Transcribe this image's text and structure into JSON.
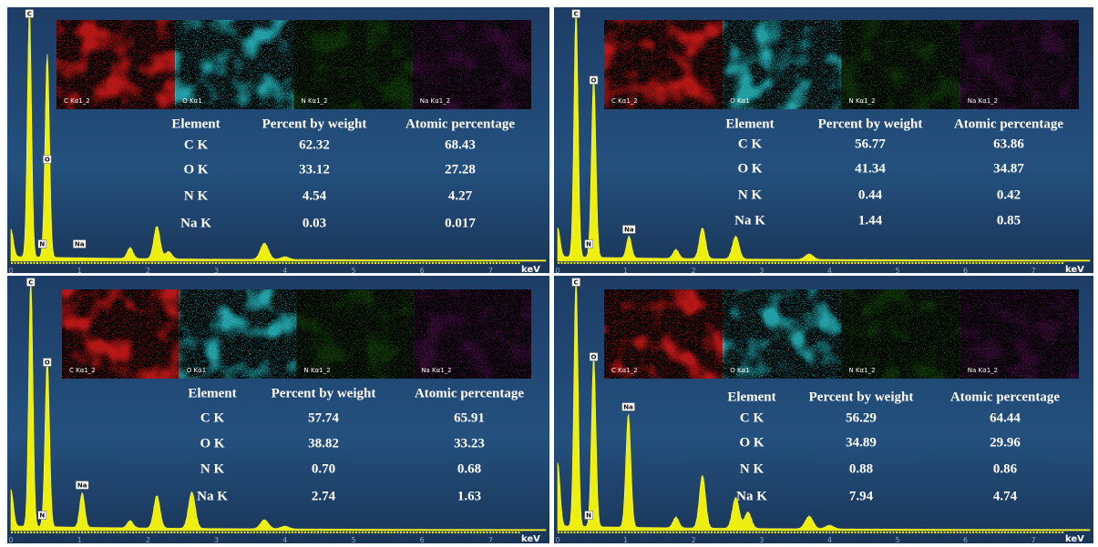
{
  "panels": [
    {
      "peaks": [
        "C",
        "O",
        "N",
        "Na"
      ],
      "maps": [
        "C Kα1_2",
        "O Kα1",
        "N Kα1_2",
        "Na Kα1_2"
      ],
      "table": {
        "header": [
          "Element",
          "Percent by weight",
          "Atomic percentage"
        ],
        "rows": [
          [
            "C K",
            "62.32",
            "68.43"
          ],
          [
            "O K",
            "33.12",
            "27.28"
          ],
          [
            "N K",
            "4.54",
            "4.27"
          ],
          [
            "Na K",
            "0.03",
            "0.017"
          ]
        ]
      },
      "axis": {
        "ticks": [
          "0",
          "1",
          "2",
          "3",
          "4",
          "5",
          "6",
          "7"
        ],
        "unit": "keV"
      }
    },
    {
      "peaks": [
        "C",
        "O",
        "N",
        "Na"
      ],
      "maps": [
        "C Kα1_2",
        "O Kα1",
        "N Kα1_2",
        "Na Kα1_2"
      ],
      "table": {
        "header": [
          "Element",
          "Percent by weight",
          "Atomic percentage"
        ],
        "rows": [
          [
            "C K",
            "56.77",
            "63.86"
          ],
          [
            "O K",
            "41.34",
            "34.87"
          ],
          [
            "N K",
            "0.44",
            "0.42"
          ],
          [
            "Na K",
            "1.44",
            "0.85"
          ]
        ]
      },
      "axis": {
        "ticks": [
          "0",
          "1",
          "2",
          "3",
          "4",
          "5",
          "6",
          "7"
        ],
        "unit": "keV"
      }
    },
    {
      "peaks": [
        "C",
        "O",
        "N",
        "Na"
      ],
      "maps": [
        "C Kα1_2",
        "O Kα1",
        "N Kα1_2",
        "Na Kα1_2"
      ],
      "table": {
        "header": [
          "Element",
          "Percent by weight",
          "Atomic percentage"
        ],
        "rows": [
          [
            "C K",
            "57.74",
            "65.91"
          ],
          [
            "O K",
            "38.82",
            "33.23"
          ],
          [
            "N K",
            "0.70",
            "0.68"
          ],
          [
            "Na K",
            "2.74",
            "1.63"
          ]
        ]
      },
      "axis": {
        "ticks": [
          "0",
          "1",
          "2",
          "3",
          "4",
          "5",
          "6",
          "7"
        ],
        "unit": "keV"
      }
    },
    {
      "peaks": [
        "C",
        "O",
        "N",
        "Na"
      ],
      "maps": [
        "C Kα1_2",
        "O Kα1",
        "N Kα1_2",
        "Na Kα1_2"
      ],
      "table": {
        "header": [
          "Element",
          "Percent by weight",
          "Atomic percentage"
        ],
        "rows": [
          [
            "C K",
            "56.29",
            "64.44"
          ],
          [
            "O K",
            "34.89",
            "29.96"
          ],
          [
            "N K",
            "0.88",
            "0.86"
          ],
          [
            "Na K",
            "7.94",
            "4.74"
          ]
        ]
      },
      "axis": {
        "ticks": [
          "0",
          "1",
          "2",
          "3",
          "4",
          "5",
          "6",
          "7"
        ],
        "unit": "keV"
      }
    }
  ]
}
